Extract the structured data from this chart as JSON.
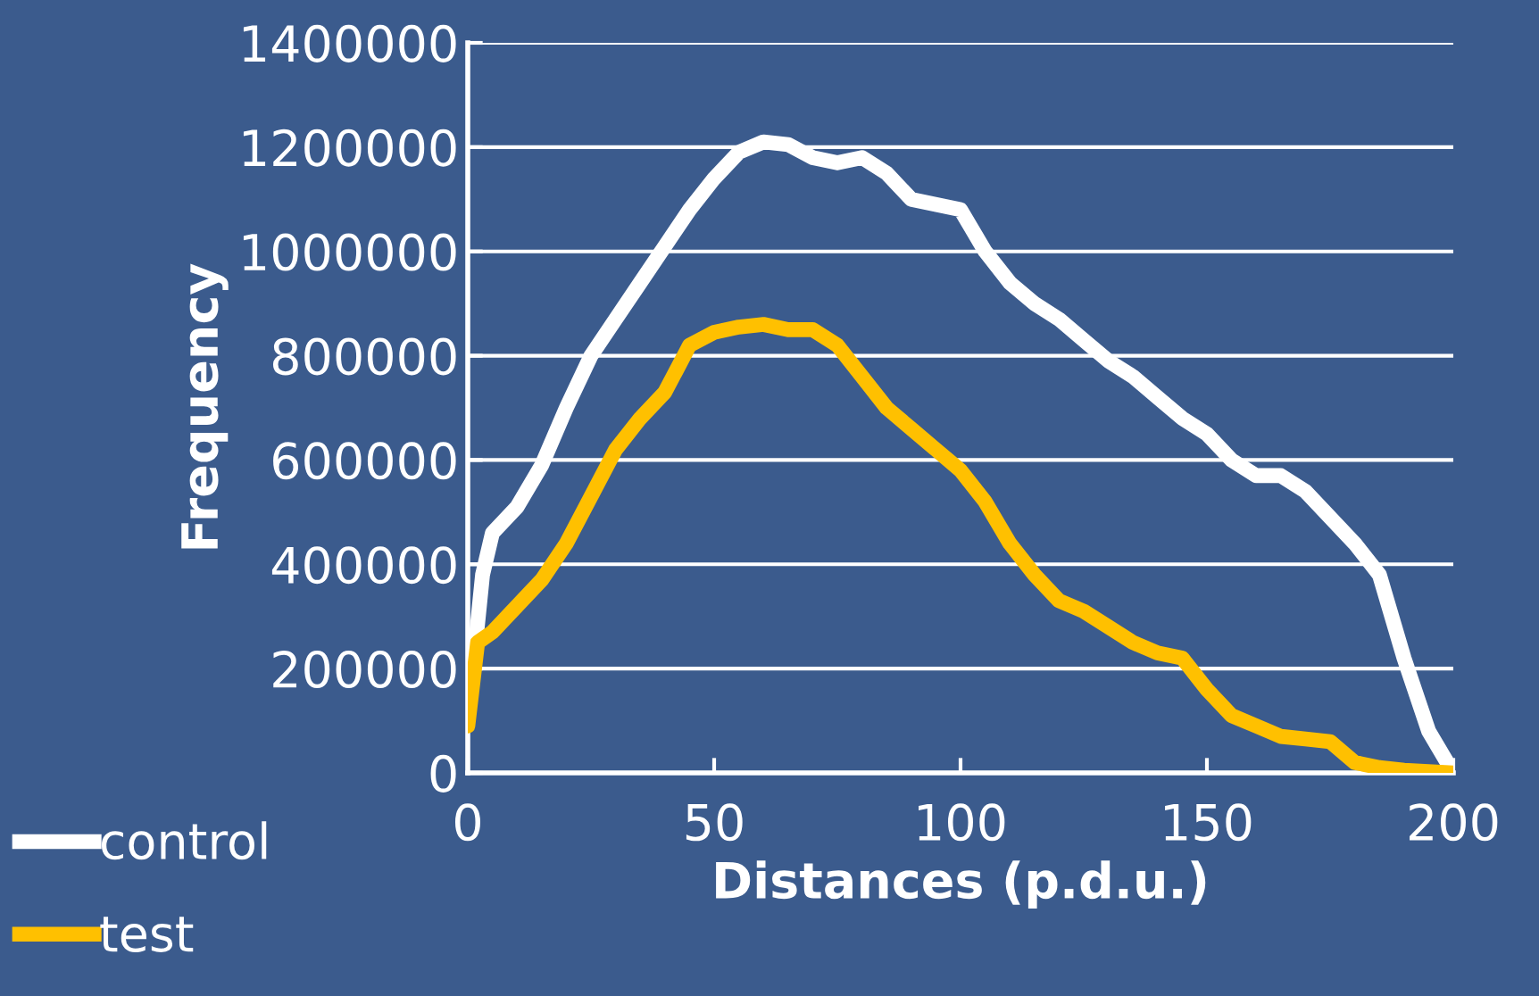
{
  "chart_data": {
    "type": "line",
    "xlabel": "Distances (p.d.u.)",
    "ylabel": "Frequency",
    "xlim": [
      0,
      200
    ],
    "xticks": [
      0,
      50,
      100,
      150,
      200
    ],
    "ylim": [
      0,
      1400000
    ],
    "yticks": [
      0,
      200000,
      400000,
      600000,
      800000,
      1000000,
      1200000,
      1400000
    ],
    "grid": "y",
    "legend": "bottom left",
    "marker": "none",
    "line_style": "solid",
    "series": [
      {
        "name": "control",
        "color": "#ffffff",
        "x": [
          0,
          3,
          5,
          10,
          15,
          20,
          25,
          30,
          35,
          40,
          45,
          50,
          55,
          60,
          65,
          70,
          75,
          80,
          85,
          90,
          95,
          100,
          105,
          110,
          115,
          120,
          125,
          130,
          135,
          140,
          145,
          150,
          155,
          160,
          165,
          170,
          175,
          180,
          185,
          190,
          195,
          200
        ],
        "values": [
          100000,
          380000,
          460000,
          510000,
          590000,
          700000,
          800000,
          870000,
          940000,
          1010000,
          1080000,
          1140000,
          1190000,
          1210000,
          1205000,
          1180000,
          1170000,
          1180000,
          1150000,
          1100000,
          1090000,
          1080000,
          1000000,
          940000,
          900000,
          870000,
          830000,
          790000,
          760000,
          720000,
          680000,
          650000,
          600000,
          570000,
          570000,
          540000,
          490000,
          440000,
          380000,
          220000,
          80000,
          0
        ]
      },
      {
        "name": "test",
        "color": "#ffc000",
        "x": [
          0,
          2,
          5,
          10,
          15,
          20,
          25,
          30,
          35,
          40,
          45,
          50,
          55,
          60,
          65,
          70,
          75,
          80,
          85,
          90,
          95,
          100,
          105,
          110,
          115,
          120,
          125,
          130,
          135,
          140,
          145,
          150,
          155,
          160,
          165,
          170,
          175,
          180,
          185,
          190,
          200
        ],
        "values": [
          90000,
          250000,
          270000,
          320000,
          370000,
          440000,
          530000,
          620000,
          680000,
          730000,
          820000,
          845000,
          855000,
          860000,
          850000,
          850000,
          820000,
          760000,
          700000,
          660000,
          620000,
          580000,
          520000,
          440000,
          380000,
          330000,
          310000,
          280000,
          250000,
          230000,
          220000,
          160000,
          110000,
          90000,
          70000,
          65000,
          60000,
          20000,
          10000,
          5000,
          0
        ]
      }
    ]
  }
}
